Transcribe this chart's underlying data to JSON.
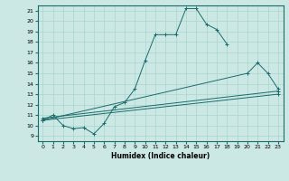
{
  "xlabel": "Humidex (Indice chaleur)",
  "bg_color": "#cce8e4",
  "line_color": "#1a6b6b",
  "grid_color": "#aad4ce",
  "xlim": [
    -0.5,
    23.5
  ],
  "ylim": [
    8.5,
    21.5
  ],
  "xticks": [
    0,
    1,
    2,
    3,
    4,
    5,
    6,
    7,
    8,
    9,
    10,
    11,
    12,
    13,
    14,
    15,
    16,
    17,
    18,
    19,
    20,
    21,
    22,
    23
  ],
  "yticks": [
    9,
    10,
    11,
    12,
    13,
    14,
    15,
    16,
    17,
    18,
    19,
    20,
    21
  ],
  "lines": [
    {
      "x": [
        0,
        1,
        2,
        3,
        4,
        5,
        6,
        7,
        8,
        9,
        10,
        11,
        12,
        13,
        14,
        15,
        16,
        17,
        18
      ],
      "y": [
        10.5,
        11,
        10,
        9.7,
        9.8,
        9.2,
        10.2,
        11.8,
        12.2,
        13.5,
        16.2,
        18.7,
        18.7,
        18.7,
        21.2,
        21.2,
        19.7,
        19.2,
        17.8
      ]
    },
    {
      "x": [
        0,
        23
      ],
      "y": [
        10.7,
        13.3
      ]
    },
    {
      "x": [
        0,
        23
      ],
      "y": [
        10.5,
        13.0
      ]
    },
    {
      "x": [
        0,
        20,
        21,
        22,
        23
      ],
      "y": [
        10.5,
        15,
        16,
        15.0,
        13.5
      ]
    }
  ]
}
